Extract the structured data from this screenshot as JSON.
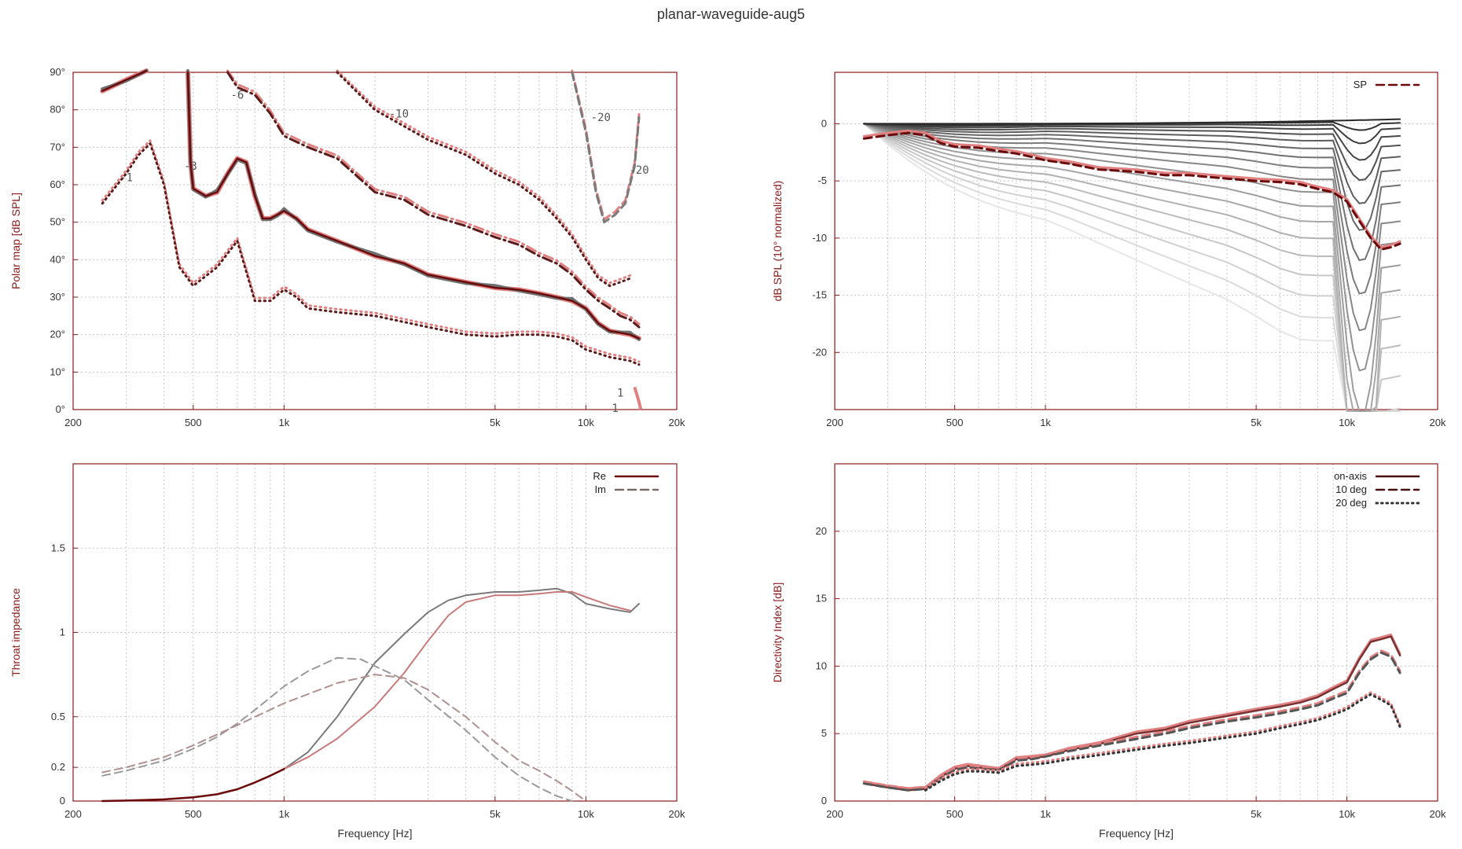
{
  "page": {
    "title": "planar-waveguide-aug5"
  },
  "colors": {
    "frame": "#8b1a1a",
    "grid": "#c8c8c8",
    "dark_red": "#6b0a0a",
    "pink": "#e08080",
    "gray": "#707070"
  },
  "chart_data": [
    {
      "id": "polar-map",
      "type": "line",
      "title": "",
      "xlabel": "",
      "ylabel": "Polar map [dB SPL]",
      "xscale": "log",
      "xlim": [
        200,
        20000
      ],
      "ylim": [
        0,
        90
      ],
      "x_ticks": [
        200,
        500,
        1000,
        5000,
        10000,
        20000
      ],
      "x_tick_labels": [
        "200",
        "500",
        "1k",
        "5k",
        "10k",
        "20k"
      ],
      "y_ticks": [
        0,
        10,
        20,
        30,
        40,
        50,
        60,
        70,
        80,
        90
      ],
      "y_tick_labels": [
        "0°",
        "10°",
        "20°",
        "30°",
        "40°",
        "50°",
        "60°",
        "70°",
        "80°",
        "90°"
      ],
      "grid": true,
      "contour_labels": [
        {
          "text": "-1",
          "x": 300,
          "y": 62
        },
        {
          "text": "-3",
          "x": 490,
          "y": 65
        },
        {
          "text": "-6",
          "x": 700,
          "y": 84
        },
        {
          "text": "-10",
          "x": 2400,
          "y": 79
        },
        {
          "text": "-20",
          "x": 11200,
          "y": 78
        },
        {
          "text": "-20",
          "x": 15000,
          "y": 64
        },
        {
          "text": "1",
          "x": 13000,
          "y": 4.5
        },
        {
          "text": "1",
          "x": 12500,
          "y": 0.4
        }
      ],
      "series": [
        {
          "style": "dotted",
          "x": [
            250,
            300,
            330,
            360,
            400,
            450,
            500,
            600,
            700,
            800,
            900,
            1000,
            1100,
            1200,
            1500,
            2000,
            3000,
            4000,
            5000,
            6000,
            7000,
            8000,
            9000,
            10000,
            12000,
            14000,
            15000
          ],
          "y": [
            55,
            63,
            68,
            71,
            60,
            38,
            33,
            38,
            45,
            29,
            29,
            32,
            30,
            27,
            26,
            25,
            22,
            20,
            19.5,
            20,
            20,
            19.5,
            18.5,
            16,
            14,
            13,
            12
          ]
        },
        {
          "style": "solid-thick",
          "x": [
            250,
            300,
            350
          ],
          "y": [
            85,
            88,
            91
          ]
        },
        {
          "style": "solid-thick",
          "x": [
            480,
            490,
            500,
            550,
            600,
            650,
            700,
            750,
            800,
            850,
            900,
            950,
            1000,
            1100,
            1200,
            1500,
            2000,
            2500,
            3000,
            4000,
            5000,
            6000,
            7000,
            8000,
            9000,
            10000,
            11000,
            12000,
            14000,
            15000
          ],
          "y": [
            90,
            66,
            59,
            57,
            58,
            63,
            67,
            66,
            57,
            51,
            51,
            52,
            53,
            51,
            48,
            45,
            41,
            39,
            36,
            34,
            32.5,
            32,
            31,
            30,
            29,
            27,
            23,
            21,
            20,
            19
          ]
        },
        {
          "style": "dash-dot",
          "x": [
            650,
            700,
            800,
            900,
            1000,
            1200,
            1500,
            2000,
            2500,
            3000,
            4000,
            5000,
            6000,
            7000,
            8000,
            9000,
            10000,
            11000,
            12000,
            13000,
            14000,
            15000
          ],
          "y": [
            90,
            86,
            84,
            79,
            73,
            70,
            67,
            58,
            56,
            52,
            49,
            46,
            44,
            41,
            39,
            36,
            32,
            29,
            27,
            25,
            24,
            22
          ]
        },
        {
          "style": "dotted",
          "x": [
            1500,
            2000,
            3000,
            4000,
            5000,
            6000,
            7000,
            8000,
            9000,
            10000,
            11000,
            12000,
            13000,
            14000
          ],
          "y": [
            90,
            80,
            72,
            68,
            63,
            60,
            56,
            51,
            46,
            40,
            35,
            33,
            34,
            35
          ]
        },
        {
          "style": "dashed",
          "x": [
            9000,
            10000,
            10800,
            11500,
            12500,
            13500,
            14500,
            15000
          ],
          "y": [
            90,
            74,
            58,
            50,
            52,
            55,
            65,
            78
          ]
        }
      ]
    },
    {
      "id": "normalized-response",
      "type": "line",
      "title": "",
      "xlabel": "",
      "ylabel": "dB SPL (10° normalized)",
      "xscale": "log",
      "xlim": [
        200,
        20000
      ],
      "ylim": [
        -25,
        4.5
      ],
      "x_ticks": [
        200,
        500,
        1000,
        5000,
        10000,
        20000
      ],
      "x_tick_labels": [
        "200",
        "500",
        "1k",
        "5k",
        "10k",
        "20k"
      ],
      "y_ticks": [
        0,
        -5,
        -10,
        -15,
        -20
      ],
      "y_tick_labels": [
        "0",
        "-5",
        "-10",
        "-15",
        "-20"
      ],
      "grid": true,
      "legend": {
        "position": "top-right",
        "entries": [
          {
            "label": "SP",
            "style": "dashed"
          }
        ]
      },
      "curve_count": 19,
      "series": [
        {
          "name": "SP",
          "style": "dashed",
          "x": [
            250,
            300,
            350,
            400,
            450,
            500,
            600,
            700,
            800,
            900,
            1000,
            1200,
            1500,
            2000,
            2500,
            3000,
            4000,
            5000,
            6000,
            7000,
            8000,
            9000,
            10000,
            11000,
            12000,
            13000,
            14000,
            15000
          ],
          "y": [
            -1.3,
            -1.0,
            -0.8,
            -1.0,
            -1.7,
            -2.0,
            -2.1,
            -2.4,
            -2.6,
            -2.9,
            -3.2,
            -3.5,
            -4.0,
            -4.2,
            -4.5,
            -4.5,
            -4.8,
            -5.0,
            -5.1,
            -5.3,
            -5.7,
            -6.0,
            -6.8,
            -8.5,
            -10.0,
            -11.0,
            -10.8,
            -10.5
          ]
        }
      ]
    },
    {
      "id": "throat-impedance",
      "type": "line",
      "title": "",
      "xlabel": "Frequency [Hz]",
      "ylabel": "Throat impedance",
      "xscale": "log",
      "xlim": [
        200,
        20000
      ],
      "ylim": [
        0,
        2
      ],
      "x_ticks": [
        200,
        500,
        1000,
        5000,
        10000,
        20000
      ],
      "x_tick_labels": [
        "200",
        "500",
        "1k",
        "5k",
        "10k",
        "20k"
      ],
      "y_ticks": [
        0,
        0.2,
        0.5,
        1,
        1.5
      ],
      "y_tick_labels": [
        "0",
        "0.2",
        "0.5",
        "1",
        "1.5"
      ],
      "grid": true,
      "legend": {
        "position": "top-right",
        "entries": [
          {
            "label": "Re",
            "style": "solid"
          },
          {
            "label": "Im",
            "style": "dashed"
          }
        ]
      },
      "series": [
        {
          "name": "Re",
          "style": "solid",
          "x": [
            250,
            300,
            400,
            500,
            600,
            700,
            800,
            900,
            1000,
            1200,
            1500,
            2000,
            2500,
            3000,
            3500,
            4000,
            5000,
            6000,
            7000,
            8000,
            9000,
            10000,
            12000,
            14000,
            15000
          ],
          "y": [
            0,
            0.003,
            0.01,
            0.022,
            0.04,
            0.07,
            0.11,
            0.15,
            0.19,
            0.29,
            0.5,
            0.82,
            0.99,
            1.12,
            1.19,
            1.22,
            1.24,
            1.24,
            1.25,
            1.26,
            1.23,
            1.17,
            1.14,
            1.12,
            1.17
          ]
        },
        {
          "name": "Re",
          "style": "solid",
          "x": [
            1000,
            1200,
            1500,
            2000,
            2500,
            3000,
            3500,
            4000,
            5000,
            6000,
            7000,
            8000,
            9000,
            10000,
            12000,
            14000
          ],
          "y": [
            0.19,
            0.26,
            0.37,
            0.56,
            0.76,
            0.95,
            1.1,
            1.18,
            1.22,
            1.22,
            1.23,
            1.24,
            1.24,
            1.21,
            1.16,
            1.13
          ]
        },
        {
          "name": "Im",
          "style": "dashed",
          "x": [
            250,
            300,
            400,
            500,
            600,
            700,
            800,
            1000,
            1200,
            1500,
            1800,
            2000,
            2500,
            3000,
            4000,
            5000,
            6000,
            7000,
            8000,
            9000
          ],
          "y": [
            0.15,
            0.18,
            0.24,
            0.31,
            0.38,
            0.46,
            0.54,
            0.68,
            0.77,
            0.85,
            0.84,
            0.8,
            0.72,
            0.6,
            0.42,
            0.26,
            0.15,
            0.08,
            0.03,
            0
          ]
        },
        {
          "name": "Im",
          "style": "dashed",
          "x": [
            250,
            300,
            400,
            500,
            700,
            1000,
            1500,
            2000,
            2500,
            3000,
            4000,
            5000,
            6000,
            7000,
            8000,
            9000,
            10000
          ],
          "y": [
            0.17,
            0.2,
            0.26,
            0.33,
            0.45,
            0.58,
            0.7,
            0.75,
            0.73,
            0.66,
            0.5,
            0.35,
            0.24,
            0.18,
            0.12,
            0.06,
            0
          ]
        }
      ]
    },
    {
      "id": "directivity-index",
      "type": "line",
      "title": "",
      "xlabel": "Frequency [Hz]",
      "ylabel": "Directivity Index [dB]",
      "xscale": "log",
      "xlim": [
        200,
        20000
      ],
      "ylim": [
        0,
        25
      ],
      "x_ticks": [
        200,
        500,
        1000,
        5000,
        10000,
        20000
      ],
      "x_tick_labels": [
        "200",
        "500",
        "1k",
        "5k",
        "10k",
        "20k"
      ],
      "y_ticks": [
        0,
        5,
        10,
        15,
        20
      ],
      "y_tick_labels": [
        "0",
        "5",
        "10",
        "15",
        "20"
      ],
      "grid": true,
      "legend": {
        "position": "top-right",
        "entries": [
          {
            "label": "on-axis",
            "style": "solid"
          },
          {
            "label": "10 deg",
            "style": "dashed"
          },
          {
            "label": "20 deg",
            "style": "dotted"
          }
        ]
      },
      "series": [
        {
          "name": "on-axis",
          "style": "solid",
          "x": [
            250,
            300,
            350,
            400,
            450,
            500,
            550,
            600,
            700,
            800,
            900,
            1000,
            1200,
            1500,
            2000,
            2500,
            3000,
            4000,
            5000,
            6000,
            7000,
            8000,
            9000,
            10000,
            11000,
            12000,
            13000,
            14000,
            15000
          ],
          "y": [
            1.3,
            1.0,
            0.8,
            0.9,
            1.8,
            2.4,
            2.6,
            2.5,
            2.3,
            3.1,
            3.2,
            3.3,
            3.8,
            4.2,
            5.0,
            5.3,
            5.8,
            6.3,
            6.7,
            7.0,
            7.3,
            7.7,
            8.3,
            8.8,
            10.5,
            11.8,
            12.0,
            12.2,
            10.8
          ]
        },
        {
          "name": "10 deg",
          "style": "dashed",
          "x": [
            250,
            300,
            350,
            400,
            450,
            500,
            550,
            600,
            700,
            800,
            900,
            1000,
            1200,
            1500,
            2000,
            2500,
            3000,
            4000,
            5000,
            6000,
            7000,
            8000,
            9000,
            10000,
            11000,
            12000,
            13000,
            14000,
            15000
          ],
          "y": [
            1.3,
            1.0,
            0.8,
            0.9,
            1.7,
            2.3,
            2.5,
            2.4,
            2.3,
            3.0,
            3.1,
            3.3,
            3.7,
            4.1,
            4.6,
            5.0,
            5.4,
            5.9,
            6.2,
            6.5,
            6.8,
            7.1,
            7.6,
            8.0,
            9.5,
            10.5,
            11.0,
            10.7,
            9.5
          ]
        },
        {
          "name": "20 deg",
          "style": "dotted",
          "x": [
            400,
            450,
            500,
            550,
            600,
            700,
            800,
            900,
            1000,
            1200,
            1500,
            2000,
            2500,
            3000,
            4000,
            5000,
            6000,
            7000,
            8000,
            9000,
            10000,
            11000,
            12000,
            13000,
            14000,
            15000
          ],
          "y": [
            0.8,
            1.5,
            2.0,
            2.2,
            2.2,
            2.1,
            2.6,
            2.7,
            2.8,
            3.1,
            3.4,
            3.8,
            4.1,
            4.3,
            4.7,
            5.0,
            5.4,
            5.7,
            6.0,
            6.4,
            6.8,
            7.4,
            7.9,
            7.5,
            7.1,
            5.5
          ]
        }
      ]
    }
  ]
}
